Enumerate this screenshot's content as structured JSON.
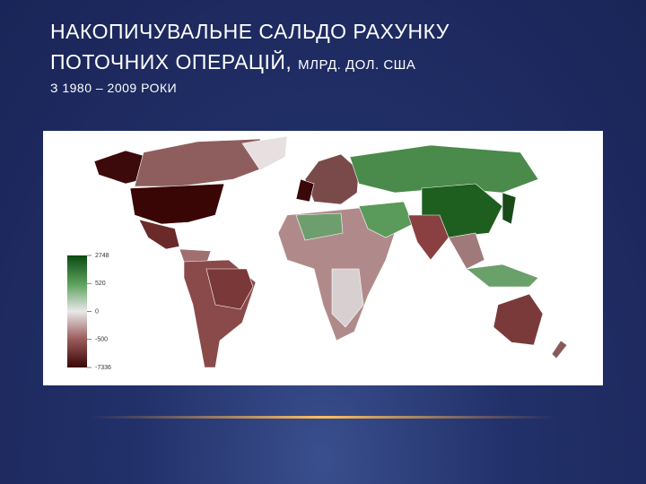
{
  "header": {
    "title_line1": "НАКОПИЧУВАЛЬНЕ САЛЬДО РАХУНКУ",
    "title_line2": "ПОТОЧНИХ ОПЕРАЦІЙ,",
    "unit": "МЛРД. ДОЛ. США",
    "subtitle": "З 1980 – 2009 РОКИ"
  },
  "legend": {
    "ticks": [
      2748,
      520,
      0,
      -500,
      -7336
    ]
  }
}
